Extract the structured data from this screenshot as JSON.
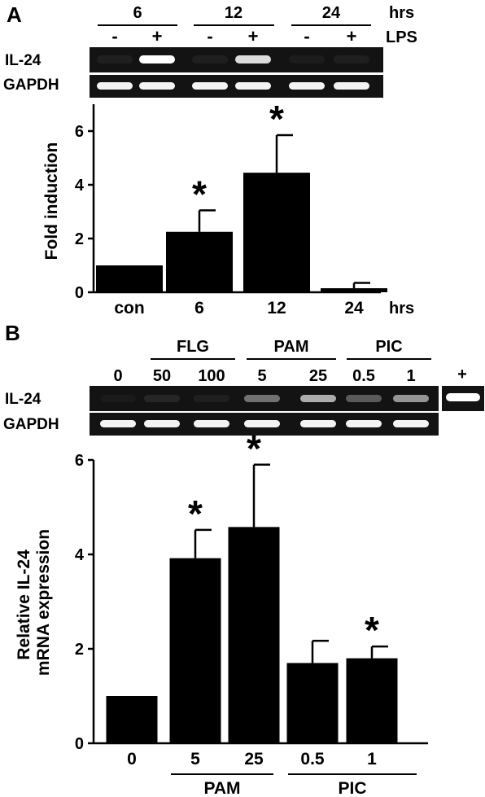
{
  "panel_a": {
    "letter": "A",
    "gel": {
      "time_groups": [
        "6",
        "12",
        "24"
      ],
      "time_unit": "hrs",
      "lps_marks": [
        "-",
        "+",
        "-",
        "+",
        "-",
        "+"
      ],
      "lps_label": "LPS",
      "rows": [
        "IL-24",
        "GAPDH"
      ],
      "il24_intensity": [
        0.05,
        1.0,
        0.05,
        0.85,
        0.04,
        0.05
      ],
      "gapdh_intensity": [
        0.95,
        0.95,
        0.95,
        0.95,
        0.95,
        0.95
      ]
    }
  },
  "panel_b": {
    "letter": "B",
    "gel": {
      "groups": [
        {
          "label": "FLG",
          "lanes": [
            1,
            2
          ]
        },
        {
          "label": "PAM",
          "lanes": [
            3,
            4
          ]
        },
        {
          "label": "PIC",
          "lanes": [
            5,
            6
          ]
        }
      ],
      "lane_labels": [
        "0",
        "50",
        "100",
        "5",
        "25",
        "0.5",
        "1"
      ],
      "positive_label": "+",
      "rows": [
        "IL-24",
        "GAPDH"
      ],
      "il24_intensity": [
        0.03,
        0.08,
        0.05,
        0.4,
        0.65,
        0.3,
        0.55
      ],
      "positive_intensity": 1.0,
      "gapdh_intensity": [
        0.95,
        0.95,
        0.95,
        0.95,
        0.95,
        0.95,
        0.95
      ]
    },
    "group_labels": [
      "PAM",
      "PIC"
    ]
  },
  "chart_data": [
    {
      "type": "bar",
      "categories": [
        "con",
        "6",
        "12",
        "24"
      ],
      "x_unit": "hrs",
      "values": [
        1.0,
        2.25,
        4.45,
        0.15
      ],
      "errors": [
        0,
        0.8,
        1.4,
        0.2
      ],
      "significant": [
        false,
        true,
        true,
        false
      ],
      "significance_mark": "*",
      "ylabel": "Fold induction",
      "ylim": [
        0,
        7
      ],
      "yticks": [
        0,
        2,
        4,
        6
      ],
      "color": "#000000"
    },
    {
      "type": "bar",
      "categories": [
        "0",
        "5",
        "25",
        "0.5",
        "1"
      ],
      "values": [
        1.0,
        3.92,
        4.58,
        1.7,
        1.8
      ],
      "errors": [
        0,
        0.6,
        1.32,
        0.47,
        0.25
      ],
      "significant": [
        false,
        true,
        true,
        false,
        true
      ],
      "significance_mark": "*",
      "ylabel": "Relative IL-24\nmRNA expression",
      "ylim": [
        0,
        6
      ],
      "yticks": [
        0,
        2,
        4,
        6
      ],
      "color": "#000000"
    }
  ]
}
